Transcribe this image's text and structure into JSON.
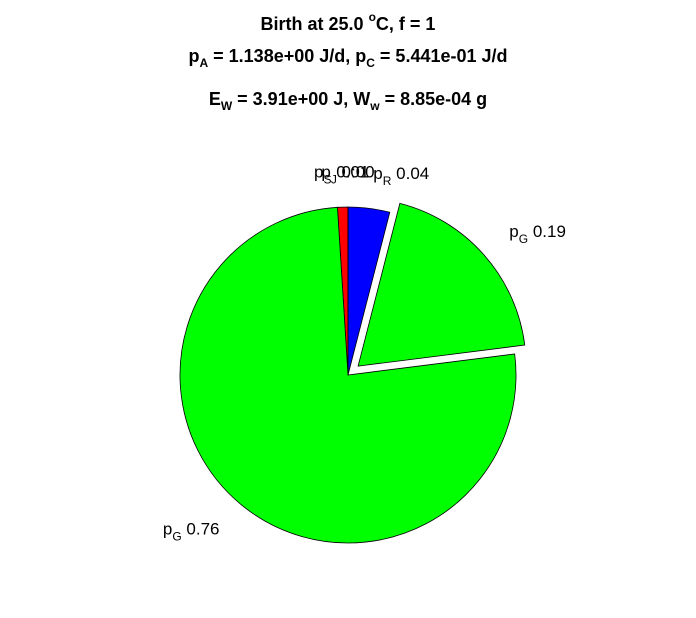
{
  "chart_data": {
    "type": "pie",
    "title": [
      [
        {
          "text": "Birth at 25.0 "
        },
        {
          "sup": "o"
        },
        {
          "text": "C, f = 1"
        }
      ],
      [
        {
          "text": "p"
        },
        {
          "sub": "A"
        },
        {
          "text": " = 1.138e+00 J/d, p"
        },
        {
          "sub": "C"
        },
        {
          "text": " = 5.441e-01 J/d"
        }
      ],
      [
        {
          "text": "E"
        },
        {
          "sub": "W"
        },
        {
          "text": " = 3.91e+00 J, W"
        },
        {
          "sub": "w"
        },
        {
          "text": " = 8.85e-04 g"
        }
      ]
    ],
    "categories": [
      {
        "symbol": "p",
        "subscript": "S"
      },
      {
        "symbol": "p",
        "subscript": "G"
      },
      {
        "symbol": "p",
        "subscript": "G"
      },
      {
        "symbol": "p",
        "subscript": "R"
      },
      {
        "symbol": "p",
        "subscript": "J"
      }
    ],
    "values": [
      0.01,
      0.76,
      0.19,
      0.04,
      0.0
    ],
    "value_labels": [
      "0.01",
      "0.76",
      "0.19",
      "0.04",
      "0:00"
    ],
    "colors": [
      "#ff0000",
      "#00ff00",
      "#00ff00",
      "#0000ff",
      "#ffff00"
    ],
    "explode": [
      false,
      false,
      true,
      false,
      false
    ]
  }
}
